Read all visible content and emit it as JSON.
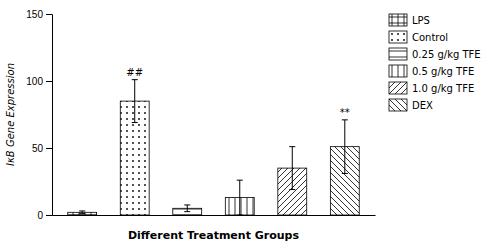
{
  "chart_data": {
    "type": "bar",
    "categories": [
      "LPS",
      "Control",
      "0.25 g/kg TFE",
      "0.5 g/kg TFE",
      "1.0 g/kg TFE",
      "DEX"
    ],
    "values": [
      2.0,
      85.0,
      5.0,
      13.0,
      35.0,
      51.0
    ],
    "errors": [
      1.0,
      16.0,
      2.5,
      13.0,
      16.0,
      20.0
    ],
    "color": "black",
    "ylim": [
      0,
      150
    ],
    "yticks": [
      0,
      50,
      100,
      150
    ],
    "xlabel": "Different Treatment Groups",
    "ylabel": "IκB Gene Expression",
    "tick_labels": "y",
    "legend": "right",
    "annotations": [
      {
        "text": "##",
        "category": "Control"
      },
      {
        "text": "**",
        "category": "DEX"
      }
    ]
  }
}
